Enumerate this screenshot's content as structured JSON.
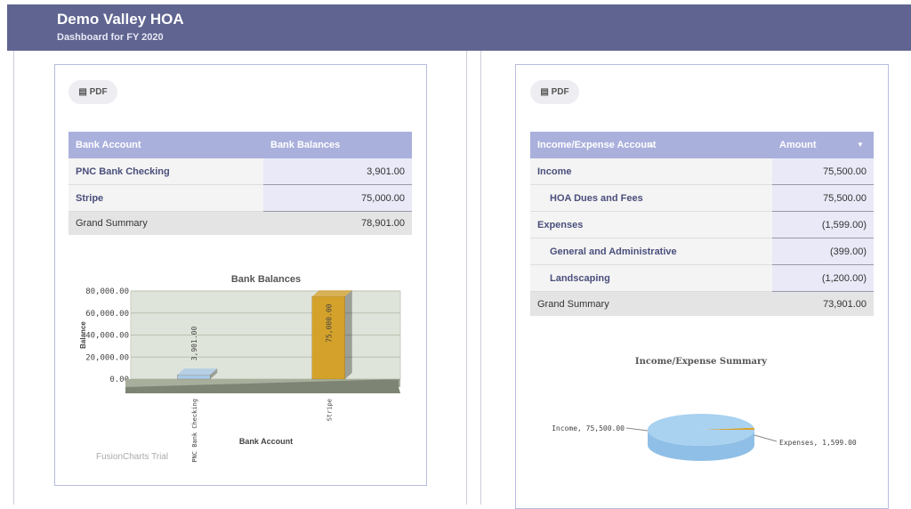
{
  "header": {
    "title": "Demo Valley HOA",
    "subtitle": "Dashboard for FY 2020"
  },
  "left": {
    "button": "PDF",
    "table": {
      "columns": [
        "Bank Account",
        "Bank Balances"
      ],
      "rows": [
        [
          "PNC Bank Checking",
          "3,901.00"
        ],
        [
          "Stripe",
          "75,000.00"
        ]
      ],
      "summary": [
        "Grand Summary",
        "78,901.00"
      ]
    },
    "chart": {
      "type": "bar",
      "title": "Bank Balances",
      "x_label": "Bank Account",
      "y_label": "Balance",
      "categories": [
        "PNC Bank Checking",
        "Stripe"
      ],
      "values": [
        3901,
        75000
      ],
      "value_labels": [
        "3,901.00",
        "75,000.00"
      ],
      "colors": [
        "#a9c8e8",
        "#d4a22a"
      ],
      "ylim": [
        0,
        80000
      ],
      "yticks": [
        {
          "value": 0,
          "label": "0.00"
        },
        {
          "value": 20000,
          "label": "20,000.00"
        },
        {
          "value": 40000,
          "label": "40,000.00"
        },
        {
          "value": 60000,
          "label": "60,000.00"
        },
        {
          "value": 80000,
          "label": "80,000.00"
        }
      ],
      "grid": true,
      "watermark": "FusionCharts Trial"
    }
  },
  "right": {
    "button": "PDF",
    "table": {
      "columns": [
        "Income/Expense Account",
        "Amount"
      ],
      "rows": [
        {
          "label": "Income",
          "amount": "75,500.00",
          "children": [
            {
              "label": "HOA Dues and Fees",
              "amount": "75,500.00"
            }
          ]
        },
        {
          "label": "Expenses",
          "amount": "(1,599.00)",
          "children": [
            {
              "label": "General and Administrative",
              "amount": "(399.00)"
            },
            {
              "label": "Landscaping",
              "amount": "(1,200.00)"
            }
          ]
        }
      ],
      "summary": [
        "Grand Summary",
        "73,901.00"
      ]
    },
    "chart": {
      "type": "pie",
      "title": "Income/Expense Summary",
      "categories": [
        "Income",
        "Expenses"
      ],
      "values": [
        75500,
        1599
      ],
      "value_labels": [
        "Income, 75,500.00",
        "Expenses, 1,599.00"
      ],
      "colors": [
        "#a9d1f0",
        "#d4a22a"
      ]
    }
  }
}
